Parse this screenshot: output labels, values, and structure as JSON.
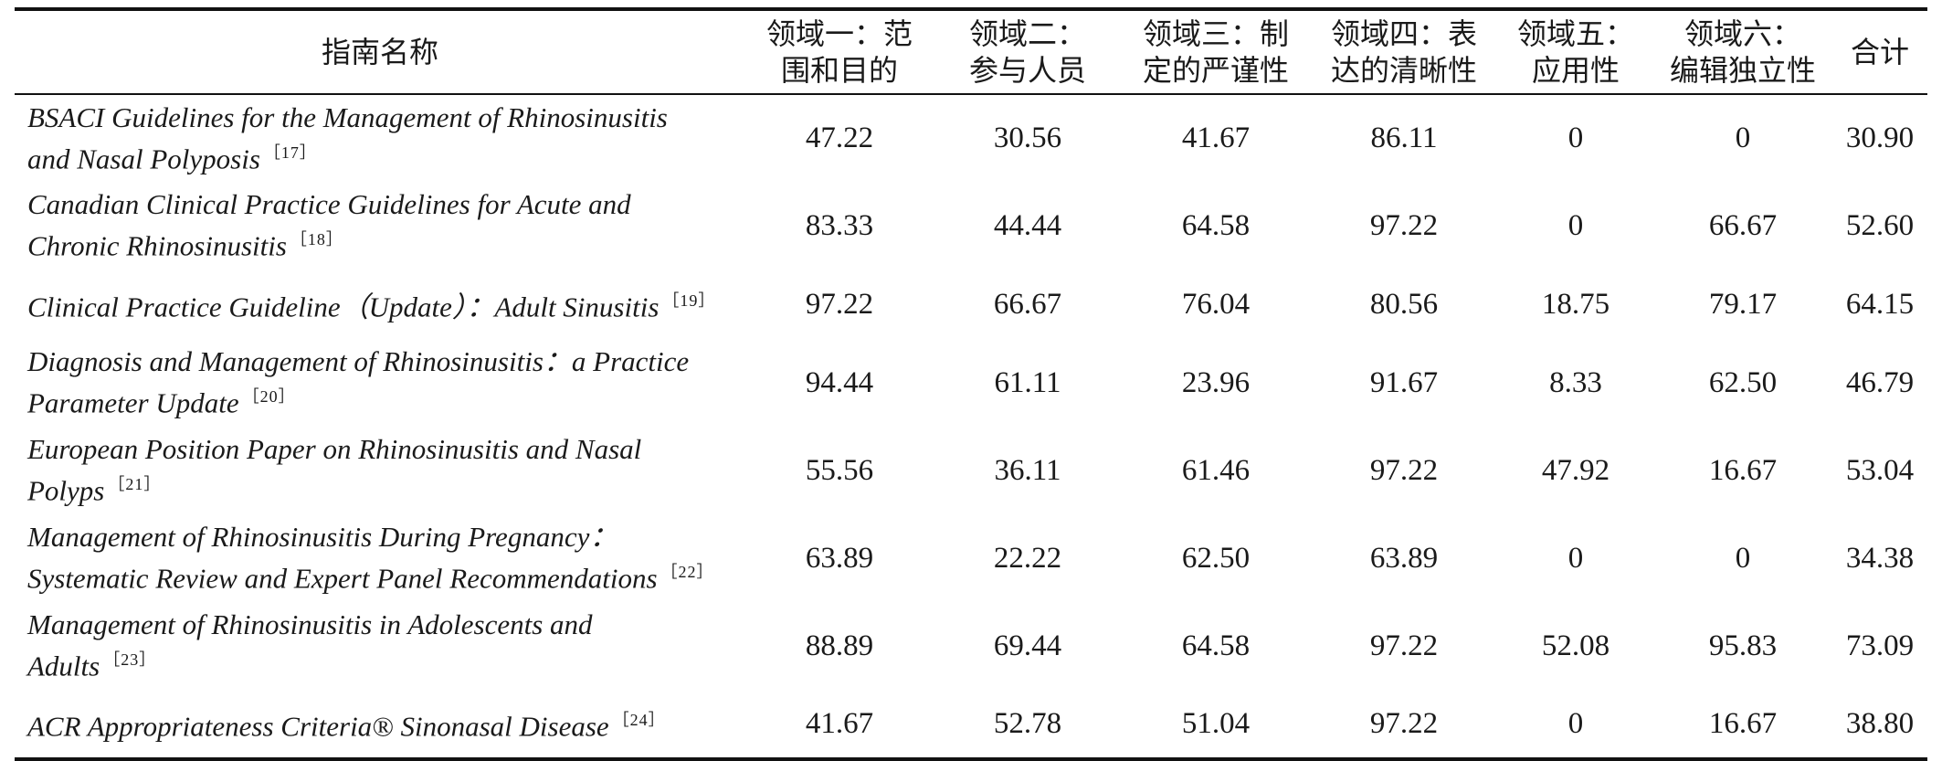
{
  "header": {
    "name": "指南名称",
    "domain1": [
      "领域一：范",
      "围和目的"
    ],
    "domain2": [
      "领域二：",
      "参与人员"
    ],
    "domain3": [
      "领域三：制",
      "定的严谨性"
    ],
    "domain4": [
      "领域四：表",
      "达的清晰性"
    ],
    "domain5": [
      "领域五：",
      "应用性"
    ],
    "domain6": [
      "领域六：",
      "编辑独立性"
    ],
    "total": "合计"
  },
  "rows": [
    {
      "title": [
        "BSACI Guidelines for the Management of Rhinosinusitis",
        "and Nasal Polyposis"
      ],
      "ref": "［17］",
      "d1": "47.22",
      "d2": "30.56",
      "d3": "41.67",
      "d4": "86.11",
      "d5": "0",
      "d6": "0",
      "total": "30.90"
    },
    {
      "title": [
        "Canadian Clinical Practice Guidelines for Acute and",
        "Chronic Rhinosinusitis"
      ],
      "ref": "［18］",
      "d1": "83.33",
      "d2": "44.44",
      "d3": "64.58",
      "d4": "97.22",
      "d5": "0",
      "d6": "66.67",
      "total": "52.60"
    },
    {
      "title": [
        "Clinical Practice Guideline（Update）：Adult Sinusitis"
      ],
      "ref": "［19］",
      "d1": "97.22",
      "d2": "66.67",
      "d3": "76.04",
      "d4": "80.56",
      "d5": "18.75",
      "d6": "79.17",
      "total": "64.15"
    },
    {
      "title": [
        "Diagnosis and Management of Rhinosinusitis：a Practice",
        "Parameter Update"
      ],
      "ref": "［20］",
      "d1": "94.44",
      "d2": "61.11",
      "d3": "23.96",
      "d4": "91.67",
      "d5": "8.33",
      "d6": "62.50",
      "total": "46.79"
    },
    {
      "title": [
        "European Position Paper on Rhinosinusitis and Nasal",
        "Polyps"
      ],
      "ref": "［21］",
      "d1": "55.56",
      "d2": "36.11",
      "d3": "61.46",
      "d4": "97.22",
      "d5": "47.92",
      "d6": "16.67",
      "total": "53.04"
    },
    {
      "title": [
        "Management of Rhinosinusitis During Pregnancy：",
        "Systematic Review and Expert Panel Recommendations"
      ],
      "ref": "［22］",
      "d1": "63.89",
      "d2": "22.22",
      "d3": "62.50",
      "d4": "63.89",
      "d5": "0",
      "d6": "0",
      "total": "34.38"
    },
    {
      "title": [
        "Management of Rhinosinusitis in Adolescents and",
        "Adults"
      ],
      "ref": "［23］",
      "d1": "88.89",
      "d2": "69.44",
      "d3": "64.58",
      "d4": "97.22",
      "d5": "52.08",
      "d6": "95.83",
      "total": "73.09"
    },
    {
      "title": [
        "ACR Appropriateness Criteria® Sinonasal Disease"
      ],
      "ref": "［24］",
      "d1": "41.67",
      "d2": "52.78",
      "d3": "51.04",
      "d4": "97.22",
      "d5": "0",
      "d6": "16.67",
      "total": "38.80"
    }
  ]
}
